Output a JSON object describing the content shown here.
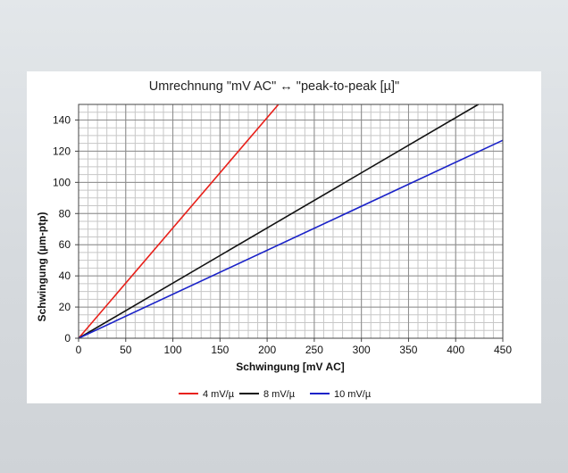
{
  "chart_data": {
    "type": "line",
    "title": "Umrechnung  \"mV AC\"  ↔  \"peak-to-peak [µ]\"",
    "xlabel": "Schwingung [mV AC]",
    "ylabel": "Schwingung (µm-ptp)",
    "xlim": [
      0,
      450
    ],
    "ylim": [
      0,
      150
    ],
    "x_ticks": [
      0,
      50,
      100,
      150,
      200,
      250,
      300,
      350,
      400,
      450
    ],
    "y_ticks": [
      0,
      20,
      40,
      60,
      80,
      100,
      120,
      140
    ],
    "x_tick_labels": [
      "0",
      "50",
      "100",
      "150",
      "200",
      "250",
      "300",
      "350",
      "400",
      "450"
    ],
    "y_tick_labels": [
      "0",
      "20",
      "40",
      "60",
      "80",
      "100",
      "120",
      "140"
    ],
    "grid": true,
    "legend_position": "bottom",
    "series": [
      {
        "name": "4 mV/µ",
        "color": "#e8201a",
        "x": [
          0,
          212
        ],
        "y": [
          0,
          150
        ]
      },
      {
        "name": "8 mV/µ",
        "color": "#111111",
        "x": [
          0,
          424
        ],
        "y": [
          0,
          150
        ]
      },
      {
        "name": "10 mV/µ",
        "color": "#1a22c8",
        "x": [
          0,
          450
        ],
        "y": [
          0,
          127
        ]
      }
    ]
  }
}
